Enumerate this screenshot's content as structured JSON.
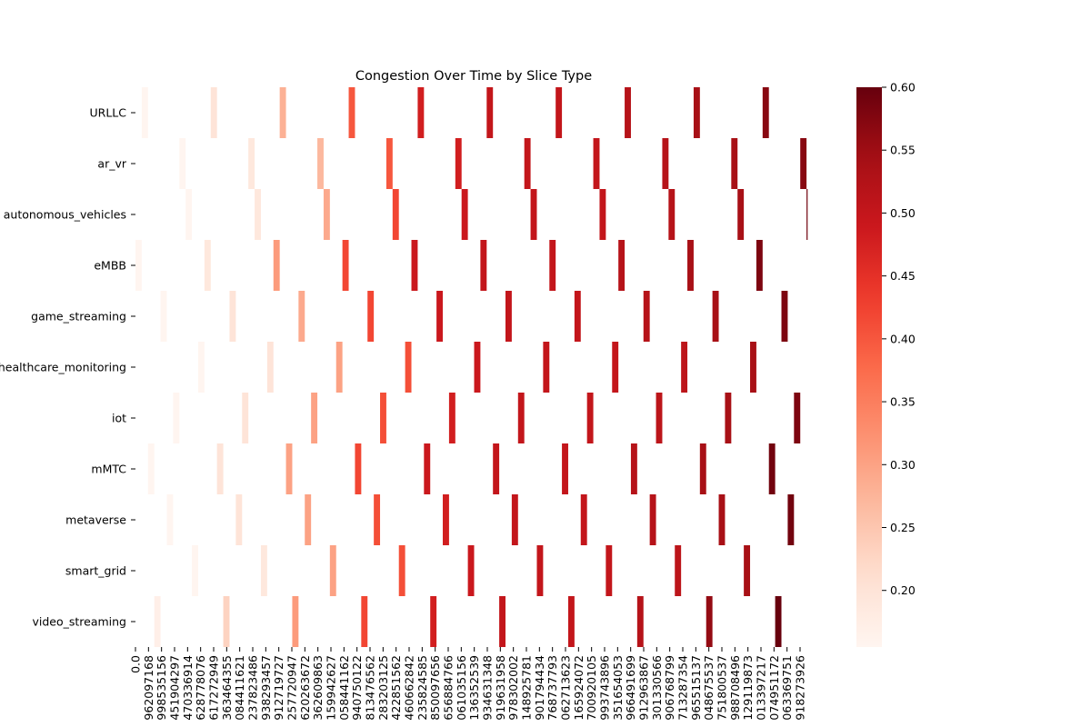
{
  "chart_data": {
    "type": "heatmap",
    "title": "Congestion Over Time by Slice Type",
    "xlabel": "",
    "ylabel": "",
    "rows": [
      "URLLC",
      "ar_vr",
      "autonomous_vehicles",
      "eMBB",
      "game_streaming",
      "healthcare_monitoring",
      "iot",
      "mMTC",
      "metaverse",
      "smart_grid",
      "video_streaming"
    ],
    "x_tick_labels": [
      "0.0",
      "962097168",
      "998535156",
      "451904297",
      "470336914",
      "628778076",
      "617272949",
      "363464355",
      "084411621",
      "237823486",
      "938293457",
      "912719727",
      "257720947",
      "620263672",
      "362609863",
      "159942627",
      "058441162",
      "940750122",
      "813476562",
      "283203125",
      "422851562",
      "460662842",
      "235824585",
      "850097656",
      "656884766",
      "061035156",
      "136352539",
      "934631348",
      "919631958",
      "978302002",
      "148925781",
      "901794434",
      "768737793",
      "062713623",
      "165924072",
      "700920105",
      "993743896",
      "351654053",
      "966491699",
      "912963867",
      "301330566",
      "906768799",
      "713287354",
      "965515137",
      "048675537",
      "751800537",
      "988708496",
      "129119873",
      "013397217",
      "074951172",
      "063369751",
      "918273926"
    ],
    "n_columns": 108,
    "row_start_columns": [
      1,
      7,
      8,
      0,
      4,
      10,
      6,
      2,
      5,
      9,
      3
    ],
    "stride": 11,
    "values": [
      [
        0.155,
        0.2,
        0.28,
        0.4,
        0.48,
        0.5,
        0.5,
        0.52,
        0.54,
        0.57
      ],
      [
        0.152,
        0.19,
        0.27,
        0.4,
        0.48,
        0.5,
        0.5,
        0.52,
        0.54,
        0.57,
        0.6
      ],
      [
        0.155,
        0.19,
        0.29,
        0.42,
        0.49,
        0.5,
        0.5,
        0.52,
        0.54,
        0.59
      ],
      [
        0.155,
        0.19,
        0.31,
        0.42,
        0.49,
        0.5,
        0.5,
        0.52,
        0.54,
        0.58
      ],
      [
        0.155,
        0.2,
        0.29,
        0.42,
        0.49,
        0.5,
        0.5,
        0.52,
        0.54,
        0.58
      ],
      [
        0.155,
        0.2,
        0.3,
        0.41,
        0.49,
        0.5,
        0.5,
        0.51,
        0.54,
        0.6
      ],
      [
        0.155,
        0.2,
        0.3,
        0.41,
        0.48,
        0.5,
        0.5,
        0.51,
        0.54,
        0.58
      ],
      [
        0.155,
        0.2,
        0.3,
        0.42,
        0.49,
        0.5,
        0.5,
        0.52,
        0.54,
        0.59
      ],
      [
        0.155,
        0.2,
        0.3,
        0.41,
        0.48,
        0.5,
        0.5,
        0.52,
        0.54,
        0.59
      ],
      [
        0.155,
        0.19,
        0.3,
        0.41,
        0.49,
        0.5,
        0.5,
        0.51,
        0.54,
        0.58
      ],
      [
        0.17,
        0.23,
        0.31,
        0.42,
        0.48,
        0.5,
        0.5,
        0.52,
        0.56,
        0.6
      ]
    ],
    "colorbar": {
      "min": 0.155,
      "max": 0.6,
      "ticks": [
        0.2,
        0.25,
        0.3,
        0.35,
        0.4,
        0.45,
        0.5,
        0.55,
        0.6
      ],
      "tick_labels": [
        "0.20",
        "0.25",
        "0.30",
        "0.35",
        "0.40",
        "0.45",
        "0.50",
        "0.55",
        "0.60"
      ],
      "colormap": "Reds"
    },
    "background": "#ffffff"
  }
}
